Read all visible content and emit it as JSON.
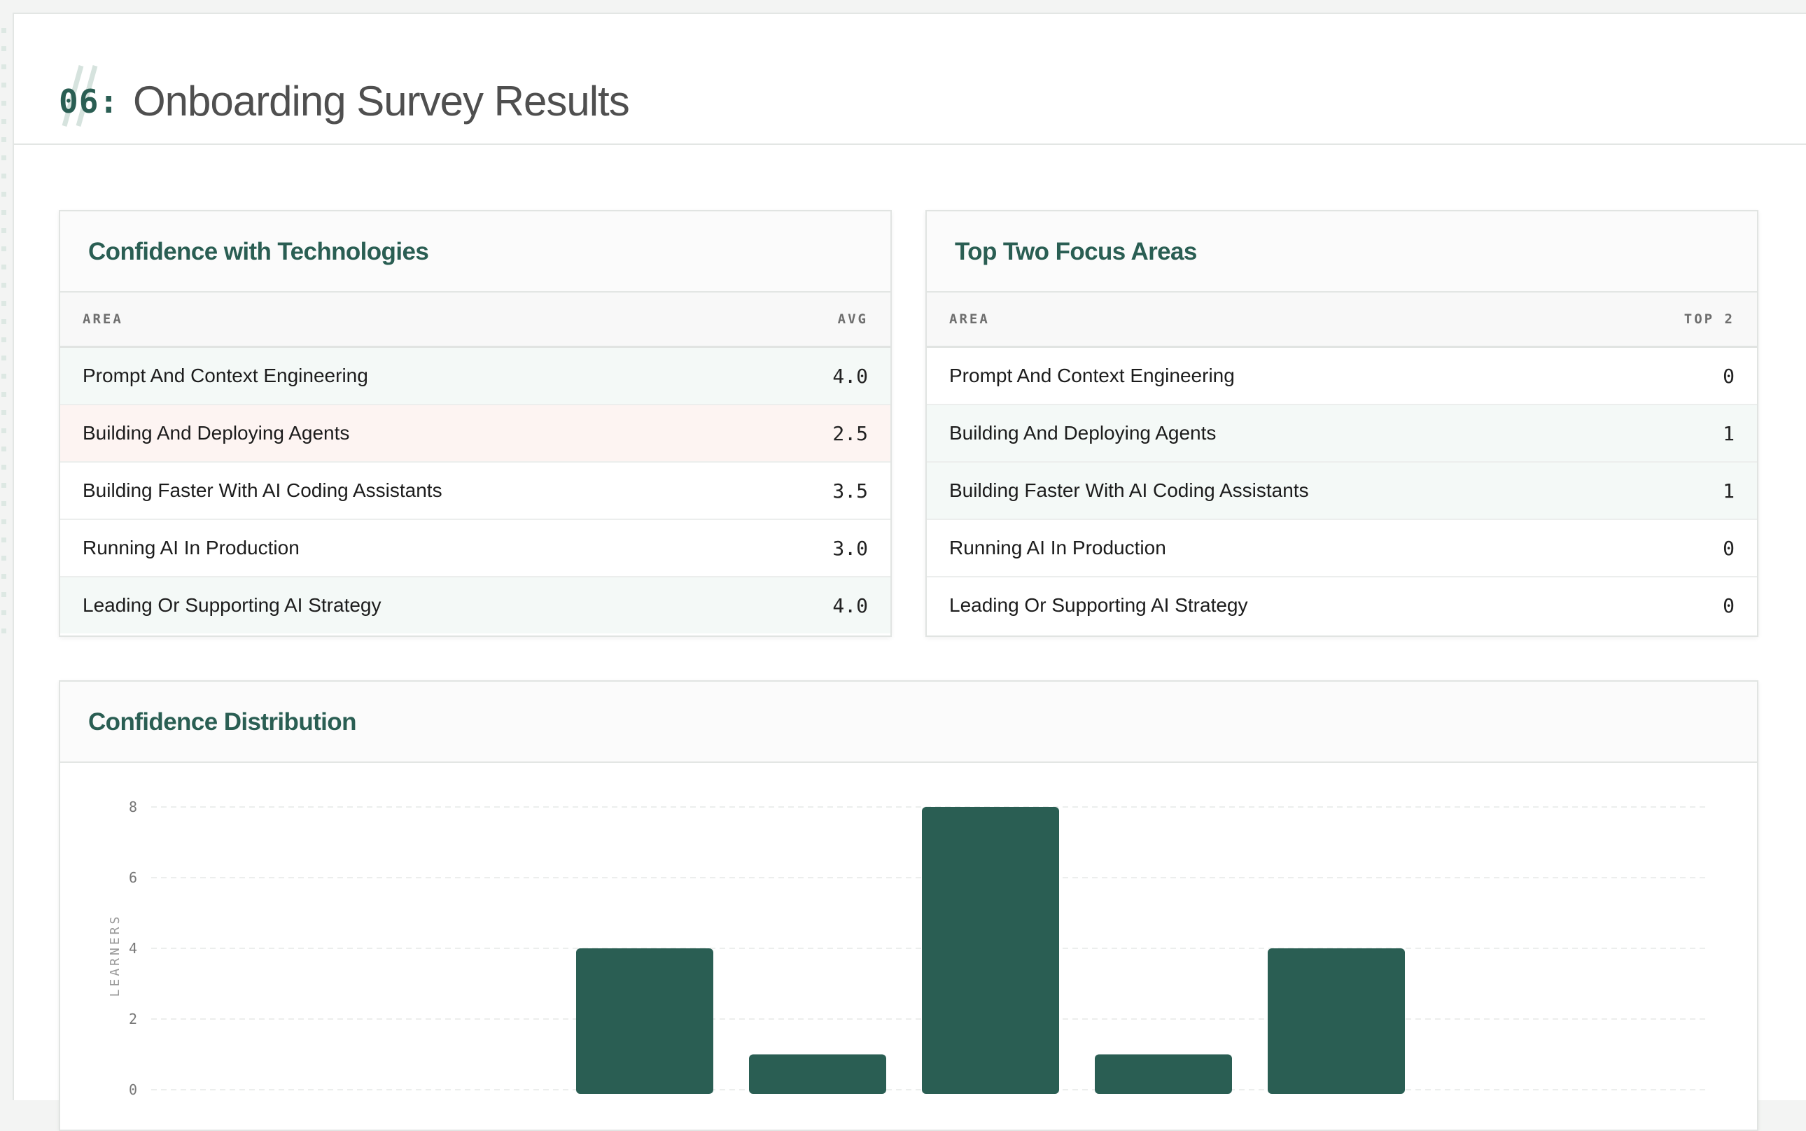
{
  "section": {
    "number": "06:",
    "title": "Onboarding Survey Results"
  },
  "confidence_table": {
    "title": "Confidence with Technologies",
    "columns": [
      "AREA",
      "AVG"
    ],
    "rows": [
      {
        "area": "Prompt And Context Engineering",
        "value": "4.0",
        "highlight": "green"
      },
      {
        "area": "Building And Deploying Agents",
        "value": "2.5",
        "highlight": "red"
      },
      {
        "area": "Building Faster With AI Coding Assistants",
        "value": "3.5",
        "highlight": "none"
      },
      {
        "area": "Running AI In Production",
        "value": "3.0",
        "highlight": "none"
      },
      {
        "area": "Leading Or Supporting AI Strategy",
        "value": "4.0",
        "highlight": "green"
      }
    ]
  },
  "focus_table": {
    "title": "Top Two Focus Areas",
    "columns": [
      "AREA",
      "TOP 2"
    ],
    "rows": [
      {
        "area": "Prompt And Context Engineering",
        "value": "0",
        "highlight": "none"
      },
      {
        "area": "Building And Deploying Agents",
        "value": "1",
        "highlight": "green"
      },
      {
        "area": "Building Faster With AI Coding Assistants",
        "value": "1",
        "highlight": "green"
      },
      {
        "area": "Running AI In Production",
        "value": "0",
        "highlight": "none"
      },
      {
        "area": "Leading Or Supporting AI Strategy",
        "value": "0",
        "highlight": "none"
      }
    ]
  },
  "distribution": {
    "title": "Confidence Distribution"
  },
  "colors": {
    "accent": "#2a5e53",
    "row_green": "#f4f9f7",
    "row_red": "#fdf4f2"
  },
  "chart_data": {
    "type": "bar",
    "title": "Confidence Distribution",
    "ylabel": "LEARNERS",
    "ylim": [
      0,
      8
    ],
    "yticks": [
      0,
      2,
      4,
      6,
      8
    ],
    "grid": true,
    "values": [
      0,
      0,
      4,
      1,
      8,
      1,
      4,
      0,
      0
    ]
  }
}
